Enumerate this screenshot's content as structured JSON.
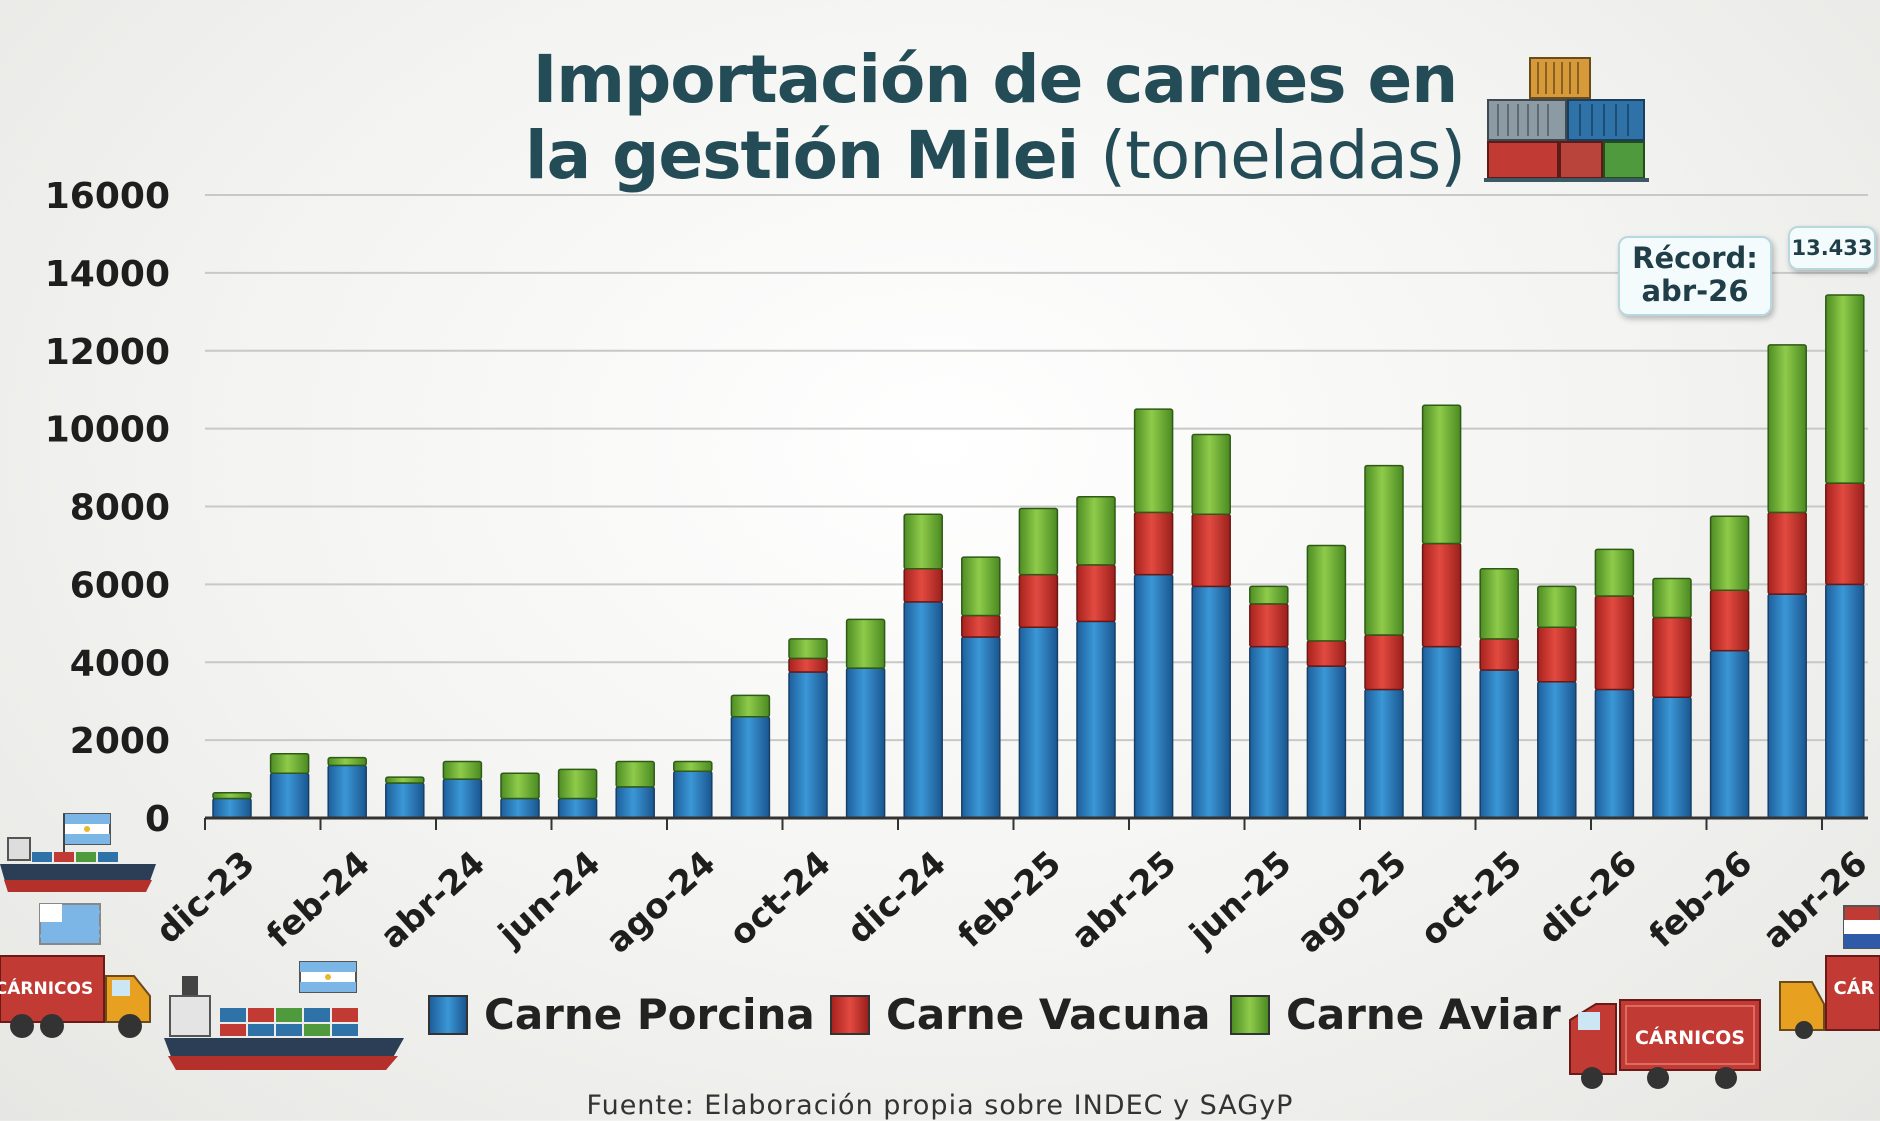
{
  "title": {
    "line1": "Importación de carnes en",
    "line2_bold": "la gestión Milei",
    "line2_light": "(toneladas)"
  },
  "source": "Fuente: Elaboración propia sobre INDEC y SAGyP",
  "record_label": {
    "line1": "Récord:",
    "line2": "abr-26"
  },
  "record_value": "13.433",
  "decor": {
    "truck_left_text": "CÁRNICOS",
    "truck_right_text": "CÁRNICOS",
    "truck_far_right_text": "CÁR"
  },
  "colors": {
    "porcina": "#2a7fc4",
    "vacuna": "#d63a34",
    "aviar": "#78b83c",
    "title": "#244c57",
    "grid": "#c8c8c8"
  },
  "chart_data": {
    "type": "bar",
    "stacked": true,
    "title": "Importación de carnes en la gestión Milei (toneladas)",
    "ylim": [
      0,
      16000
    ],
    "yticks": [
      0,
      2000,
      4000,
      6000,
      8000,
      10000,
      12000,
      14000,
      16000
    ],
    "grid": true,
    "legend_position": "bottom",
    "categories": [
      "dic-23",
      "ene-24",
      "feb-24",
      "mar-24",
      "abr-24",
      "may-24",
      "jun-24",
      "jul-24",
      "ago-24",
      "sep-24",
      "oct-24",
      "nov-24",
      "dic-24",
      "ene-25",
      "feb-25",
      "mar-25",
      "abr-25",
      "may-25",
      "jun-25",
      "jul-25",
      "ago-25",
      "sep-25",
      "oct-25",
      "nov-25",
      "dic-26",
      "ene-26",
      "feb-26",
      "mar-26",
      "abr-26"
    ],
    "xtick_labels": [
      "dic-23",
      "feb-24",
      "abr-24",
      "jun-24",
      "ago-24",
      "oct-24",
      "dic-24",
      "feb-25",
      "abr-25",
      "jun-25",
      "ago-25",
      "oct-25",
      "dic-26",
      "feb-26",
      "abr-26"
    ],
    "series": [
      {
        "name": "Carne Porcina",
        "values": [
          500,
          1150,
          1350,
          900,
          1000,
          500,
          500,
          800,
          1200,
          2600,
          3750,
          3850,
          5550,
          4650,
          4900,
          5050,
          6250,
          5950,
          4400,
          3900,
          3300,
          4400,
          3800,
          3500,
          3300,
          3100,
          4300,
          5750,
          6000
        ]
      },
      {
        "name": "Carne Vacuna",
        "values": [
          0,
          0,
          0,
          0,
          0,
          0,
          0,
          0,
          0,
          0,
          350,
          0,
          850,
          550,
          1350,
          1450,
          1600,
          1850,
          1100,
          650,
          1400,
          2650,
          800,
          1400,
          2400,
          2050,
          1550,
          2100,
          2600
        ]
      },
      {
        "name": "Carne Aviar",
        "values": [
          150,
          500,
          200,
          150,
          450,
          650,
          750,
          650,
          250,
          550,
          500,
          1250,
          1400,
          1500,
          1700,
          1750,
          2650,
          2050,
          450,
          2450,
          4350,
          3550,
          1800,
          1050,
          1200,
          1000,
          1900,
          4300,
          4833
        ]
      }
    ]
  }
}
